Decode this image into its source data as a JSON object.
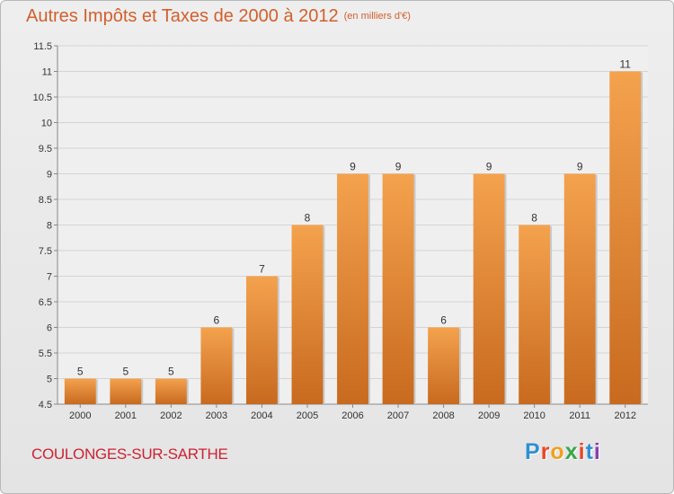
{
  "header": {
    "title": "Autres Impôts et Taxes de 2000 à 2012",
    "unit": "(en milliers d'€)"
  },
  "footer": {
    "commune": "COULONGES-SUR-SARTHE",
    "logo_letters": [
      "P",
      "r",
      "o",
      "x",
      "i",
      "t",
      "i"
    ],
    "logo_colors": [
      "#2f8fd3",
      "#e8462a",
      "#f0a020",
      "#3aa64a",
      "#e8462a",
      "#2f8fd3",
      "#8a3fb0"
    ]
  },
  "colors": {
    "bar_top": "#f4a24e",
    "bar_bottom": "#c86a1f",
    "title": "#d1602c",
    "grid": "#d4d4d4",
    "axis_text": "#333333"
  },
  "chart_data": {
    "type": "bar",
    "title": "Autres Impôts et Taxes de 2000 à 2012",
    "subtitle": "(en milliers d'€)",
    "categories": [
      "2000",
      "2001",
      "2002",
      "2003",
      "2004",
      "2005",
      "2006",
      "2007",
      "2008",
      "2009",
      "2010",
      "2011",
      "2012"
    ],
    "values": [
      5,
      5,
      5,
      6,
      7,
      8,
      9,
      9,
      6,
      9,
      8,
      9,
      11
    ],
    "ylim": [
      4.5,
      11.5
    ],
    "yticks": [
      "4.5",
      "5",
      "5.5",
      "6",
      "6.5",
      "7",
      "7.5",
      "8",
      "8.5",
      "9",
      "9.5",
      "10",
      "10.5",
      "11",
      "11.5"
    ],
    "grid": true,
    "data_labels": true
  }
}
